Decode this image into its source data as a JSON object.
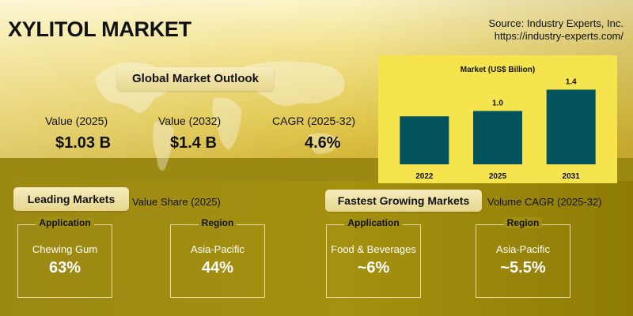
{
  "title": "XYLITOL MARKET",
  "source": {
    "line1": "Source: Industry Experts, Inc.",
    "line2": "https://industry-experts.com/"
  },
  "outlook": {
    "heading": "Global Market Outlook",
    "stats": [
      {
        "label": "Value (2025)",
        "value": "$1.03 B"
      },
      {
        "label": "Value (2032)",
        "value": "$1.4 B"
      },
      {
        "label": "CAGR (2025-32)",
        "value": "4.6%"
      }
    ]
  },
  "chart_data": {
    "type": "bar",
    "title": "Market (US$ Billion)",
    "categories": [
      "2022",
      "2025",
      "2031"
    ],
    "values": [
      0.9,
      1.0,
      1.4
    ],
    "data_labels": [
      "",
      "1.0",
      "1.4"
    ],
    "ylim": [
      0,
      1.6
    ],
    "grid": false,
    "colors": {
      "bar": "#03535d",
      "background": "#f6e44f"
    }
  },
  "leading": {
    "heading": "Leading Markets",
    "subtitle": "Value Share (2025)",
    "cards": [
      {
        "tag": "Application",
        "name": "Chewing Gum",
        "value": "63%"
      },
      {
        "tag": "Region",
        "name": "Asia-Pacific",
        "value": "44%"
      }
    ]
  },
  "fastest": {
    "heading": "Fastest Growing Markets",
    "subtitle": "Volume CAGR (2025-32)",
    "cards": [
      {
        "tag": "Application",
        "name": "Food & Beverages",
        "value": "~6%"
      },
      {
        "tag": "Region",
        "name": "Asia-Pacific",
        "value": "~5.5%"
      }
    ]
  }
}
